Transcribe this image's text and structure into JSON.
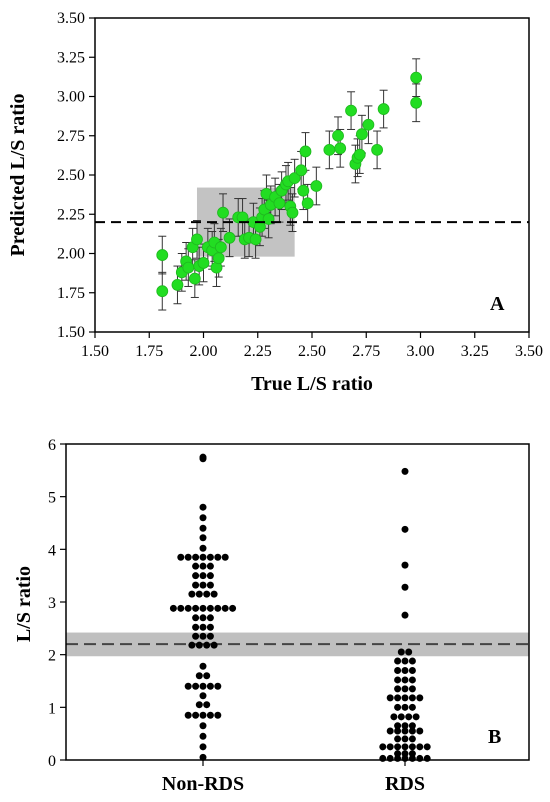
{
  "chart_data": [
    {
      "type": "scatter",
      "panel_label": "A",
      "xlabel": "True L/S ratio",
      "ylabel": "Predicted L/S ratio",
      "xlim": [
        1.5,
        3.5
      ],
      "ylim": [
        1.5,
        3.5
      ],
      "xticks": [
        "1.50",
        "1.75",
        "2.00",
        "2.25",
        "2.50",
        "2.75",
        "3.00",
        "3.25",
        "3.50"
      ],
      "yticks": [
        "1.50",
        "1.75",
        "2.00",
        "2.25",
        "2.50",
        "2.75",
        "3.00",
        "3.25",
        "3.50"
      ],
      "threshold_y": 2.2,
      "shaded_region": {
        "x": [
          1.97,
          2.42
        ],
        "y": [
          1.98,
          2.42
        ]
      },
      "marker_color": "#22dd22",
      "series": [
        {
          "error": 0.12,
          "points": [
            [
              1.81,
              1.99
            ],
            [
              1.81,
              1.76
            ],
            [
              1.88,
              1.8
            ],
            [
              1.9,
              1.88
            ],
            [
              1.92,
              1.95
            ],
            [
              1.93,
              1.91
            ],
            [
              1.95,
              2.04
            ],
            [
              1.96,
              1.84
            ],
            [
              1.97,
              2.09
            ],
            [
              1.98,
              1.92
            ],
            [
              2.0,
              1.94
            ],
            [
              2.02,
              2.04
            ],
            [
              2.04,
              2.02
            ],
            [
              2.05,
              2.07
            ],
            [
              2.06,
              1.91
            ],
            [
              2.07,
              1.97
            ],
            [
              2.08,
              2.04
            ],
            [
              2.09,
              2.26
            ],
            [
              2.12,
              2.1
            ],
            [
              2.16,
              2.23
            ],
            [
              2.18,
              2.23
            ],
            [
              2.19,
              2.09
            ],
            [
              2.21,
              2.1
            ],
            [
              2.23,
              2.2
            ],
            [
              2.24,
              2.09
            ],
            [
              2.26,
              2.17
            ],
            [
              2.27,
              2.23
            ],
            [
              2.28,
              2.28
            ],
            [
              2.29,
              2.38
            ],
            [
              2.3,
              2.22
            ],
            [
              2.31,
              2.31
            ],
            [
              2.33,
              2.36
            ],
            [
              2.35,
              2.32
            ],
            [
              2.36,
              2.4
            ],
            [
              2.38,
              2.44
            ],
            [
              2.39,
              2.46
            ],
            [
              2.4,
              2.3
            ],
            [
              2.41,
              2.26
            ],
            [
              2.42,
              2.48
            ],
            [
              2.45,
              2.53
            ],
            [
              2.46,
              2.4
            ],
            [
              2.47,
              2.65
            ],
            [
              2.48,
              2.32
            ],
            [
              2.52,
              2.43
            ],
            [
              2.58,
              2.66
            ],
            [
              2.62,
              2.75
            ],
            [
              2.63,
              2.67
            ],
            [
              2.68,
              2.91
            ],
            [
              2.7,
              2.57
            ],
            [
              2.71,
              2.61
            ],
            [
              2.72,
              2.63
            ],
            [
              2.73,
              2.76
            ],
            [
              2.76,
              2.82
            ],
            [
              2.8,
              2.66
            ],
            [
              2.83,
              2.92
            ],
            [
              2.98,
              3.12
            ],
            [
              2.98,
              2.96
            ]
          ]
        }
      ]
    },
    {
      "type": "scatter",
      "panel_label": "B",
      "xlabel": "",
      "ylabel": "L/S ratio",
      "ylim": [
        0,
        6
      ],
      "yticks": [
        "0",
        "1",
        "2",
        "3",
        "4",
        "5",
        "6"
      ],
      "categories": [
        "Non-RDS",
        "RDS"
      ],
      "threshold_y": 2.2,
      "shaded_band": [
        1.97,
        2.42
      ],
      "marker_color": "#000000",
      "series": [
        {
          "category": "Non-RDS",
          "values": [
            5.75,
            5.72,
            4.8,
            4.6,
            4.4,
            4.22,
            4.02,
            3.85,
            3.85,
            3.85,
            3.85,
            3.85,
            3.85,
            3.85,
            3.68,
            3.68,
            3.68,
            3.5,
            3.5,
            3.5,
            3.32,
            3.32,
            3.32,
            3.15,
            3.15,
            3.15,
            3.15,
            2.88,
            2.88,
            2.88,
            2.88,
            2.88,
            2.88,
            2.88,
            2.88,
            2.88,
            2.7,
            2.7,
            2.7,
            2.52,
            2.52,
            2.52,
            2.35,
            2.35,
            2.35,
            2.18,
            2.18,
            2.18,
            2.18,
            1.78,
            1.6,
            1.6,
            1.4,
            1.4,
            1.4,
            1.4,
            1.4,
            1.22,
            1.05,
            1.05,
            0.85,
            0.85,
            0.85,
            0.85,
            0.85,
            0.65,
            0.45,
            0.25,
            0.05
          ]
        },
        {
          "category": "RDS",
          "values": [
            5.48,
            4.38,
            3.7,
            3.28,
            2.75,
            2.05,
            2.05,
            1.88,
            1.88,
            1.88,
            1.7,
            1.7,
            1.7,
            1.52,
            1.52,
            1.52,
            1.35,
            1.35,
            1.35,
            1.18,
            1.18,
            1.18,
            1.18,
            1.18,
            1.0,
            1.0,
            1.0,
            0.82,
            0.82,
            0.82,
            0.82,
            0.65,
            0.65,
            0.65,
            0.55,
            0.55,
            0.55,
            0.55,
            0.55,
            0.4,
            0.4,
            0.4,
            0.25,
            0.25,
            0.25,
            0.25,
            0.25,
            0.25,
            0.25,
            0.12,
            0.12,
            0.12,
            0.03,
            0.03,
            0.03,
            0.03,
            0.03,
            0.03,
            0.03
          ]
        }
      ]
    }
  ]
}
